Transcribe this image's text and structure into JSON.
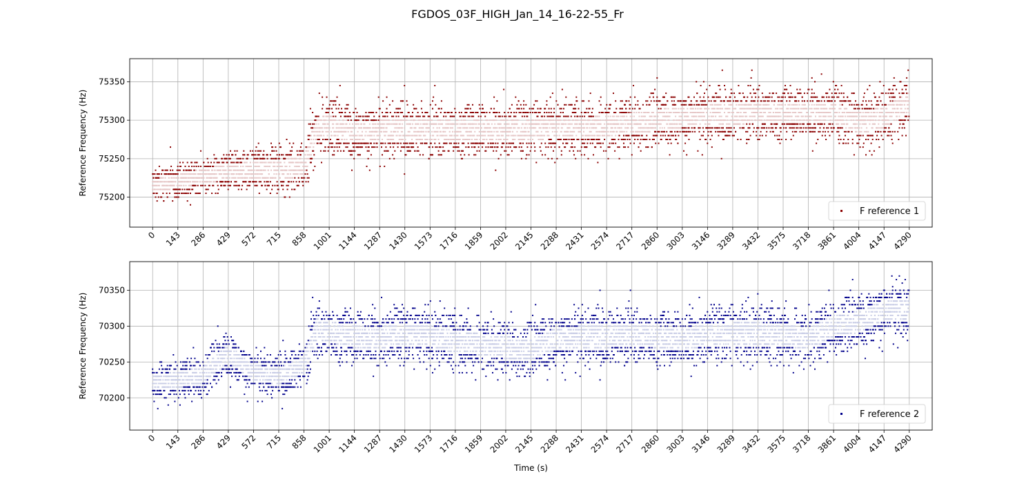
{
  "figure_title": "FGDOS_03F_HIGH_Jan_14_16-22-55_Fr",
  "chart_data": [
    {
      "type": "scatter",
      "title": "",
      "xlabel": "",
      "ylabel": "Reference Frequency (Hz)",
      "x_ticks": [
        "0",
        "143",
        "286",
        "429",
        "572",
        "715",
        "858",
        "1001",
        "1144",
        "1287",
        "1430",
        "1573",
        "1716",
        "1859",
        "2002",
        "2145",
        "2288",
        "2431",
        "2574",
        "2717",
        "2860",
        "3003",
        "3146",
        "3289",
        "3432",
        "3575",
        "3718",
        "3861",
        "4004",
        "4147",
        "4290"
      ],
      "y_ticks": [
        "75200",
        "75250",
        "75300",
        "75350"
      ],
      "xlim": [
        -130,
        4420
      ],
      "ylim": [
        75161,
        75380
      ],
      "grid": true,
      "legend_position": "lower-right",
      "series": [
        {
          "name": "F reference 1",
          "color": "#8b0000"
        }
      ],
      "x": [
        0,
        143,
        286,
        429,
        572,
        715,
        858,
        930,
        1001,
        1144,
        1287,
        1430,
        1573,
        1716,
        1859,
        2002,
        2145,
        2288,
        2431,
        2574,
        2717,
        2860,
        3003,
        3146,
        3289,
        3432,
        3575,
        3718,
        3861,
        4004,
        4147,
        4290
      ],
      "y_center": [
        75215,
        75220,
        75228,
        75232,
        75236,
        75236,
        75240,
        75290,
        75292,
        75284,
        75286,
        75288,
        75288,
        75288,
        75288,
        75288,
        75288,
        75290,
        75290,
        75292,
        75296,
        75300,
        75304,
        75306,
        75308,
        75310,
        75310,
        75310,
        75310,
        75296,
        75304,
        75322
      ],
      "y_spread": [
        24,
        26,
        28,
        30,
        32,
        36,
        40,
        40,
        40,
        40,
        40,
        40,
        40,
        40,
        40,
        40,
        40,
        40,
        40,
        40,
        40,
        40,
        40,
        40,
        40,
        40,
        40,
        40,
        40,
        40,
        40,
        40
      ]
    },
    {
      "type": "scatter",
      "title": "",
      "xlabel": "Time (s)",
      "ylabel": "Reference Frequency (Hz)",
      "x_ticks": [
        "0",
        "143",
        "286",
        "429",
        "572",
        "715",
        "858",
        "1001",
        "1144",
        "1287",
        "1430",
        "1573",
        "1716",
        "1859",
        "2002",
        "2145",
        "2288",
        "2431",
        "2574",
        "2717",
        "2860",
        "3003",
        "3146",
        "3289",
        "3432",
        "3575",
        "3718",
        "3861",
        "4004",
        "4147",
        "4290"
      ],
      "y_ticks": [
        "70200",
        "70250",
        "70300",
        "70350"
      ],
      "xlim": [
        -130,
        4420
      ],
      "ylim": [
        70155,
        70390
      ],
      "grid": true,
      "legend_position": "lower-right",
      "series": [
        {
          "name": "F reference 2",
          "color": "#00008b"
        }
      ],
      "x": [
        0,
        143,
        286,
        429,
        572,
        715,
        858,
        930,
        1001,
        1144,
        1287,
        1430,
        1573,
        1716,
        1859,
        2002,
        2145,
        2288,
        2431,
        2574,
        2717,
        2860,
        3003,
        3146,
        3289,
        3432,
        3575,
        3718,
        3861,
        4004,
        4147,
        4290
      ],
      "y_center": [
        70222,
        70225,
        70232,
        70262,
        70235,
        70230,
        70246,
        70296,
        70292,
        70285,
        70284,
        70288,
        70286,
        70278,
        70275,
        70270,
        70268,
        70282,
        70285,
        70285,
        70288,
        70285,
        70282,
        70288,
        70290,
        70290,
        70288,
        70282,
        70300,
        70306,
        70322,
        70322
      ],
      "y_spread": [
        30,
        32,
        34,
        36,
        34,
        32,
        36,
        44,
        44,
        44,
        44,
        44,
        44,
        44,
        44,
        44,
        44,
        44,
        44,
        44,
        44,
        44,
        44,
        44,
        44,
        44,
        44,
        44,
        44,
        44,
        44,
        44
      ]
    }
  ]
}
